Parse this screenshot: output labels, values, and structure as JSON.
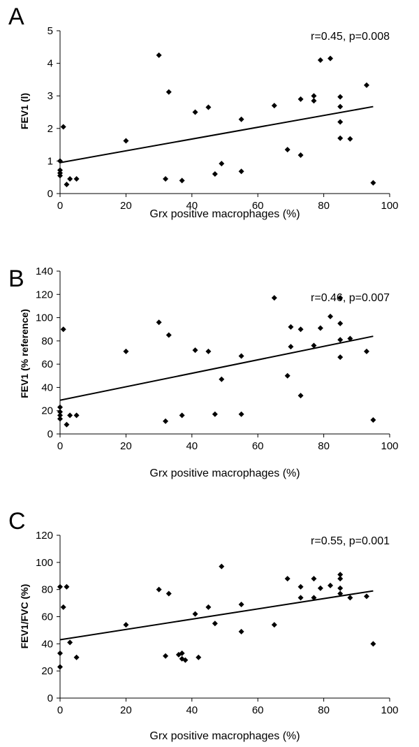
{
  "chart_data": [
    {
      "type": "scatter",
      "panel": "A",
      "xlabel": "Grx positive macrophages (%)",
      "ylabel": "FEV1 (l)",
      "annotation": "r=0.45, p=0.008",
      "xlim": [
        0,
        100
      ],
      "ylim": [
        0,
        5
      ],
      "xticks": [
        "0",
        "20",
        "40",
        "60",
        "80",
        "100"
      ],
      "yticks": [
        "0",
        "1",
        "2",
        "3",
        "4",
        "5"
      ],
      "points": [
        [
          0,
          1.0
        ],
        [
          0,
          0.72
        ],
        [
          0,
          0.63
        ],
        [
          0,
          0.55
        ],
        [
          1,
          2.05
        ],
        [
          2,
          0.28
        ],
        [
          3,
          0.45
        ],
        [
          5,
          0.45
        ],
        [
          20,
          1.62
        ],
        [
          30,
          4.25
        ],
        [
          32,
          0.45
        ],
        [
          33,
          3.12
        ],
        [
          37,
          0.4
        ],
        [
          41,
          2.5
        ],
        [
          45,
          2.65
        ],
        [
          47,
          0.6
        ],
        [
          49,
          0.92
        ],
        [
          55,
          2.28
        ],
        [
          55,
          0.68
        ],
        [
          65,
          2.7
        ],
        [
          69,
          1.35
        ],
        [
          73,
          2.9
        ],
        [
          73,
          1.18
        ],
        [
          77,
          3.0
        ],
        [
          77,
          2.85
        ],
        [
          79,
          4.1
        ],
        [
          82,
          4.15
        ],
        [
          85,
          2.97
        ],
        [
          85,
          2.67
        ],
        [
          85,
          2.2
        ],
        [
          85,
          1.7
        ],
        [
          88,
          1.68
        ],
        [
          93,
          3.33
        ],
        [
          95,
          0.33
        ]
      ],
      "trendline": [
        [
          0,
          0.95
        ],
        [
          95,
          2.67
        ]
      ]
    },
    {
      "type": "scatter",
      "panel": "B",
      "xlabel": "Grx positive macrophages (%)",
      "ylabel": "FEV1 (% reference)",
      "annotation": "r=0.46, p=0.007",
      "xlim": [
        0,
        100
      ],
      "ylim": [
        0,
        140
      ],
      "xticks": [
        "0",
        "20",
        "40",
        "60",
        "80",
        "100"
      ],
      "yticks": [
        "0",
        "20",
        "40",
        "60",
        "80",
        "100",
        "120",
        "140"
      ],
      "points": [
        [
          0,
          23
        ],
        [
          0,
          19
        ],
        [
          0,
          16
        ],
        [
          0,
          13
        ],
        [
          1,
          90
        ],
        [
          2,
          8
        ],
        [
          3,
          16
        ],
        [
          5,
          16
        ],
        [
          20,
          71
        ],
        [
          30,
          96
        ],
        [
          32,
          11
        ],
        [
          33,
          85
        ],
        [
          37,
          16
        ],
        [
          41,
          72
        ],
        [
          45,
          71
        ],
        [
          47,
          17
        ],
        [
          49,
          47
        ],
        [
          55,
          67
        ],
        [
          55,
          17
        ],
        [
          65,
          117
        ],
        [
          69,
          50
        ],
        [
          70,
          92
        ],
        [
          70,
          75
        ],
        [
          73,
          90
        ],
        [
          73,
          33
        ],
        [
          77,
          76
        ],
        [
          79,
          91
        ],
        [
          82,
          101
        ],
        [
          85,
          117
        ],
        [
          85,
          95
        ],
        [
          85,
          81
        ],
        [
          85,
          66
        ],
        [
          88,
          82
        ],
        [
          93,
          71
        ],
        [
          95,
          12
        ]
      ],
      "trendline": [
        [
          0,
          29
        ],
        [
          95,
          84
        ]
      ]
    },
    {
      "type": "scatter",
      "panel": "C",
      "xlabel": "Grx positive macrophages (%)",
      "ylabel": "FEV1/FVC (%)",
      "annotation": "r=0.55, p=0.001",
      "xlim": [
        0,
        100
      ],
      "ylim": [
        0,
        120
      ],
      "xticks": [
        "0",
        "20",
        "40",
        "60",
        "80",
        "100"
      ],
      "yticks": [
        "0",
        "20",
        "40",
        "60",
        "80",
        "100",
        "120"
      ],
      "points": [
        [
          0,
          82
        ],
        [
          0,
          33
        ],
        [
          0,
          23
        ],
        [
          1,
          67
        ],
        [
          2,
          82
        ],
        [
          3,
          41
        ],
        [
          5,
          30
        ],
        [
          20,
          54
        ],
        [
          30,
          80
        ],
        [
          32,
          31
        ],
        [
          33,
          77
        ],
        [
          36,
          32
        ],
        [
          37,
          33
        ],
        [
          37,
          29
        ],
        [
          38,
          28
        ],
        [
          41,
          62
        ],
        [
          42,
          30
        ],
        [
          45,
          67
        ],
        [
          47,
          55
        ],
        [
          49,
          97
        ],
        [
          55,
          69
        ],
        [
          55,
          49
        ],
        [
          65,
          54
        ],
        [
          69,
          88
        ],
        [
          73,
          82
        ],
        [
          73,
          74
        ],
        [
          77,
          88
        ],
        [
          77,
          74
        ],
        [
          79,
          81
        ],
        [
          82,
          83
        ],
        [
          85,
          91
        ],
        [
          85,
          88
        ],
        [
          85,
          81
        ],
        [
          85,
          77
        ],
        [
          88,
          74
        ],
        [
          93,
          75
        ],
        [
          95,
          40
        ]
      ],
      "trendline": [
        [
          0,
          43
        ],
        [
          95,
          79
        ]
      ]
    }
  ]
}
